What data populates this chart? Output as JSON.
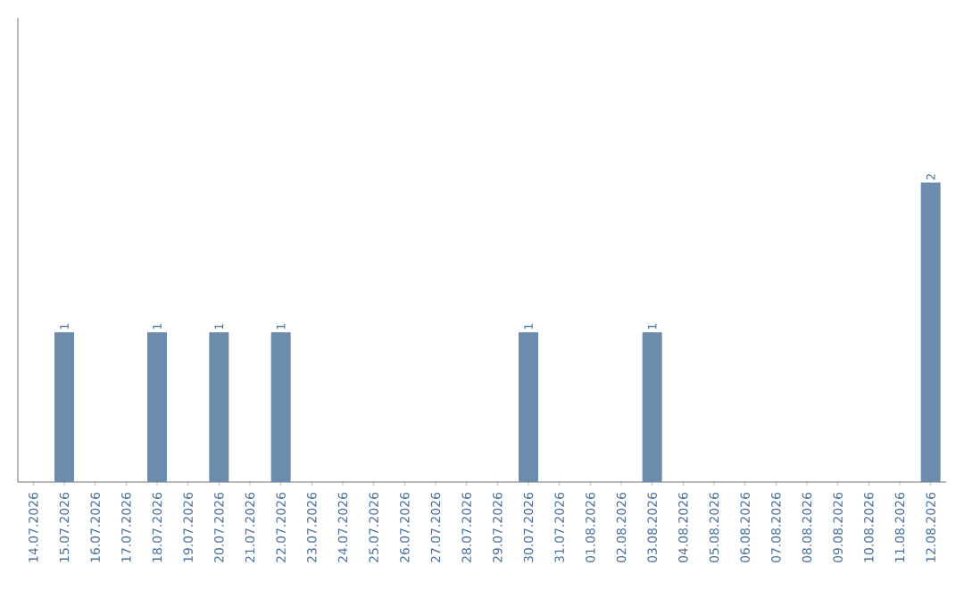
{
  "chart_data": {
    "type": "bar",
    "categories": [
      "14.07.2026",
      "15.07.2026",
      "16.07.2026",
      "17.07.2026",
      "18.07.2026",
      "19.07.2026",
      "20.07.2026",
      "21.07.2026",
      "22.07.2026",
      "23.07.2026",
      "24.07.2026",
      "25.07.2026",
      "26.07.2026",
      "27.07.2026",
      "28.07.2026",
      "29.07.2026",
      "30.07.2026",
      "31.07.2026",
      "01.08.2026",
      "02.08.2026",
      "03.08.2026",
      "04.08.2026",
      "05.08.2026",
      "06.08.2026",
      "07.08.2026",
      "08.08.2026",
      "09.08.2026",
      "10.08.2026",
      "11.08.2026",
      "12.08.2026"
    ],
    "values": [
      0,
      1,
      0,
      0,
      1,
      0,
      1,
      0,
      1,
      0,
      0,
      0,
      0,
      0,
      0,
      0,
      1,
      0,
      0,
      0,
      1,
      0,
      0,
      0,
      0,
      0,
      0,
      0,
      0,
      2
    ],
    "color": "#6b8cac",
    "ylim": [
      0,
      3.1
    ],
    "value_labels": [
      null,
      "1",
      null,
      null,
      "1",
      null,
      "1",
      null,
      "1",
      null,
      null,
      null,
      null,
      null,
      null,
      null,
      "1",
      null,
      null,
      null,
      "1",
      null,
      null,
      null,
      null,
      null,
      null,
      null,
      null,
      "2"
    ],
    "tick_labels": "x"
  }
}
